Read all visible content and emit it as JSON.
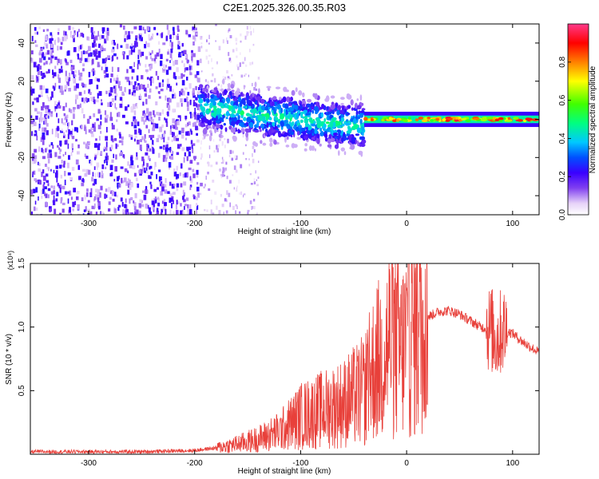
{
  "title": "C2E1.2025.326.00.35.R03",
  "chart_data": [
    {
      "type": "heatmap",
      "xlabel": "Height of straight line (km)",
      "ylabel": "Frequency (Hz)",
      "xlim": [
        -355,
        125
      ],
      "ylim": [
        -50,
        50
      ],
      "xticks": [
        -300,
        -200,
        -100,
        0,
        100
      ],
      "yticks": [
        -40,
        -20,
        0,
        20,
        40
      ],
      "colorbar": {
        "label": "Normalized spectral amplitude",
        "range": [
          0.0,
          1.0
        ],
        "ticks": [
          "0.0",
          "0.2",
          "0.4",
          "0.6",
          "0.8"
        ],
        "colors": [
          "#ffffff",
          "#e6d2f8",
          "#8040f0",
          "#3a00ff",
          "#0050ff",
          "#00c8ff",
          "#00ff80",
          "#40ff00",
          "#ffff00",
          "#ff8000",
          "#ff0000",
          "#ff3a8a"
        ]
      },
      "regions": [
        {
          "x_range": [
            -355,
            -195
          ],
          "freq_range": [
            -50,
            50
          ],
          "amplitude": 0.15
        },
        {
          "x_range": [
            -195,
            -140
          ],
          "freq_range": [
            -50,
            50
          ],
          "amplitude": 0.05
        },
        {
          "x_range": [
            -195,
            -40
          ],
          "freq_center_start": 6,
          "freq_center_end": -4,
          "amplitude": 0.35
        },
        {
          "x_range": [
            -40,
            125
          ],
          "freq_center": 0,
          "amplitude": 0.9
        }
      ]
    },
    {
      "type": "line",
      "xlabel": "Height of straight line (km)",
      "ylabel": "SNR (10 * v/v)",
      "y_multiplier": "(x10⁴)",
      "xlim": [
        -355,
        125
      ],
      "ylim": [
        0,
        1.5
      ],
      "xticks": [
        -300,
        -200,
        -100,
        0,
        100
      ],
      "yticks": [
        "0.5",
        "1.0",
        "1.5"
      ],
      "color": "#e8403a",
      "series_envelope": {
        "x": [
          -355,
          -300,
          -250,
          -200,
          -180,
          -160,
          -140,
          -120,
          -100,
          -80,
          -60,
          -40,
          -30,
          -20,
          -15,
          -10,
          -5,
          0,
          10,
          20,
          30,
          40,
          50,
          60,
          70,
          80,
          85,
          90,
          100,
          110,
          125
        ],
        "y": [
          0.02,
          0.02,
          0.02,
          0.03,
          0.05,
          0.08,
          0.12,
          0.18,
          0.3,
          0.35,
          0.4,
          0.5,
          0.7,
          0.8,
          0.95,
          0.85,
          0.8,
          0.9,
          1.0,
          1.08,
          1.12,
          1.13,
          1.1,
          1.05,
          1.0,
          0.98,
          0.9,
          0.98,
          0.95,
          0.88,
          0.8
        ]
      }
    }
  ]
}
